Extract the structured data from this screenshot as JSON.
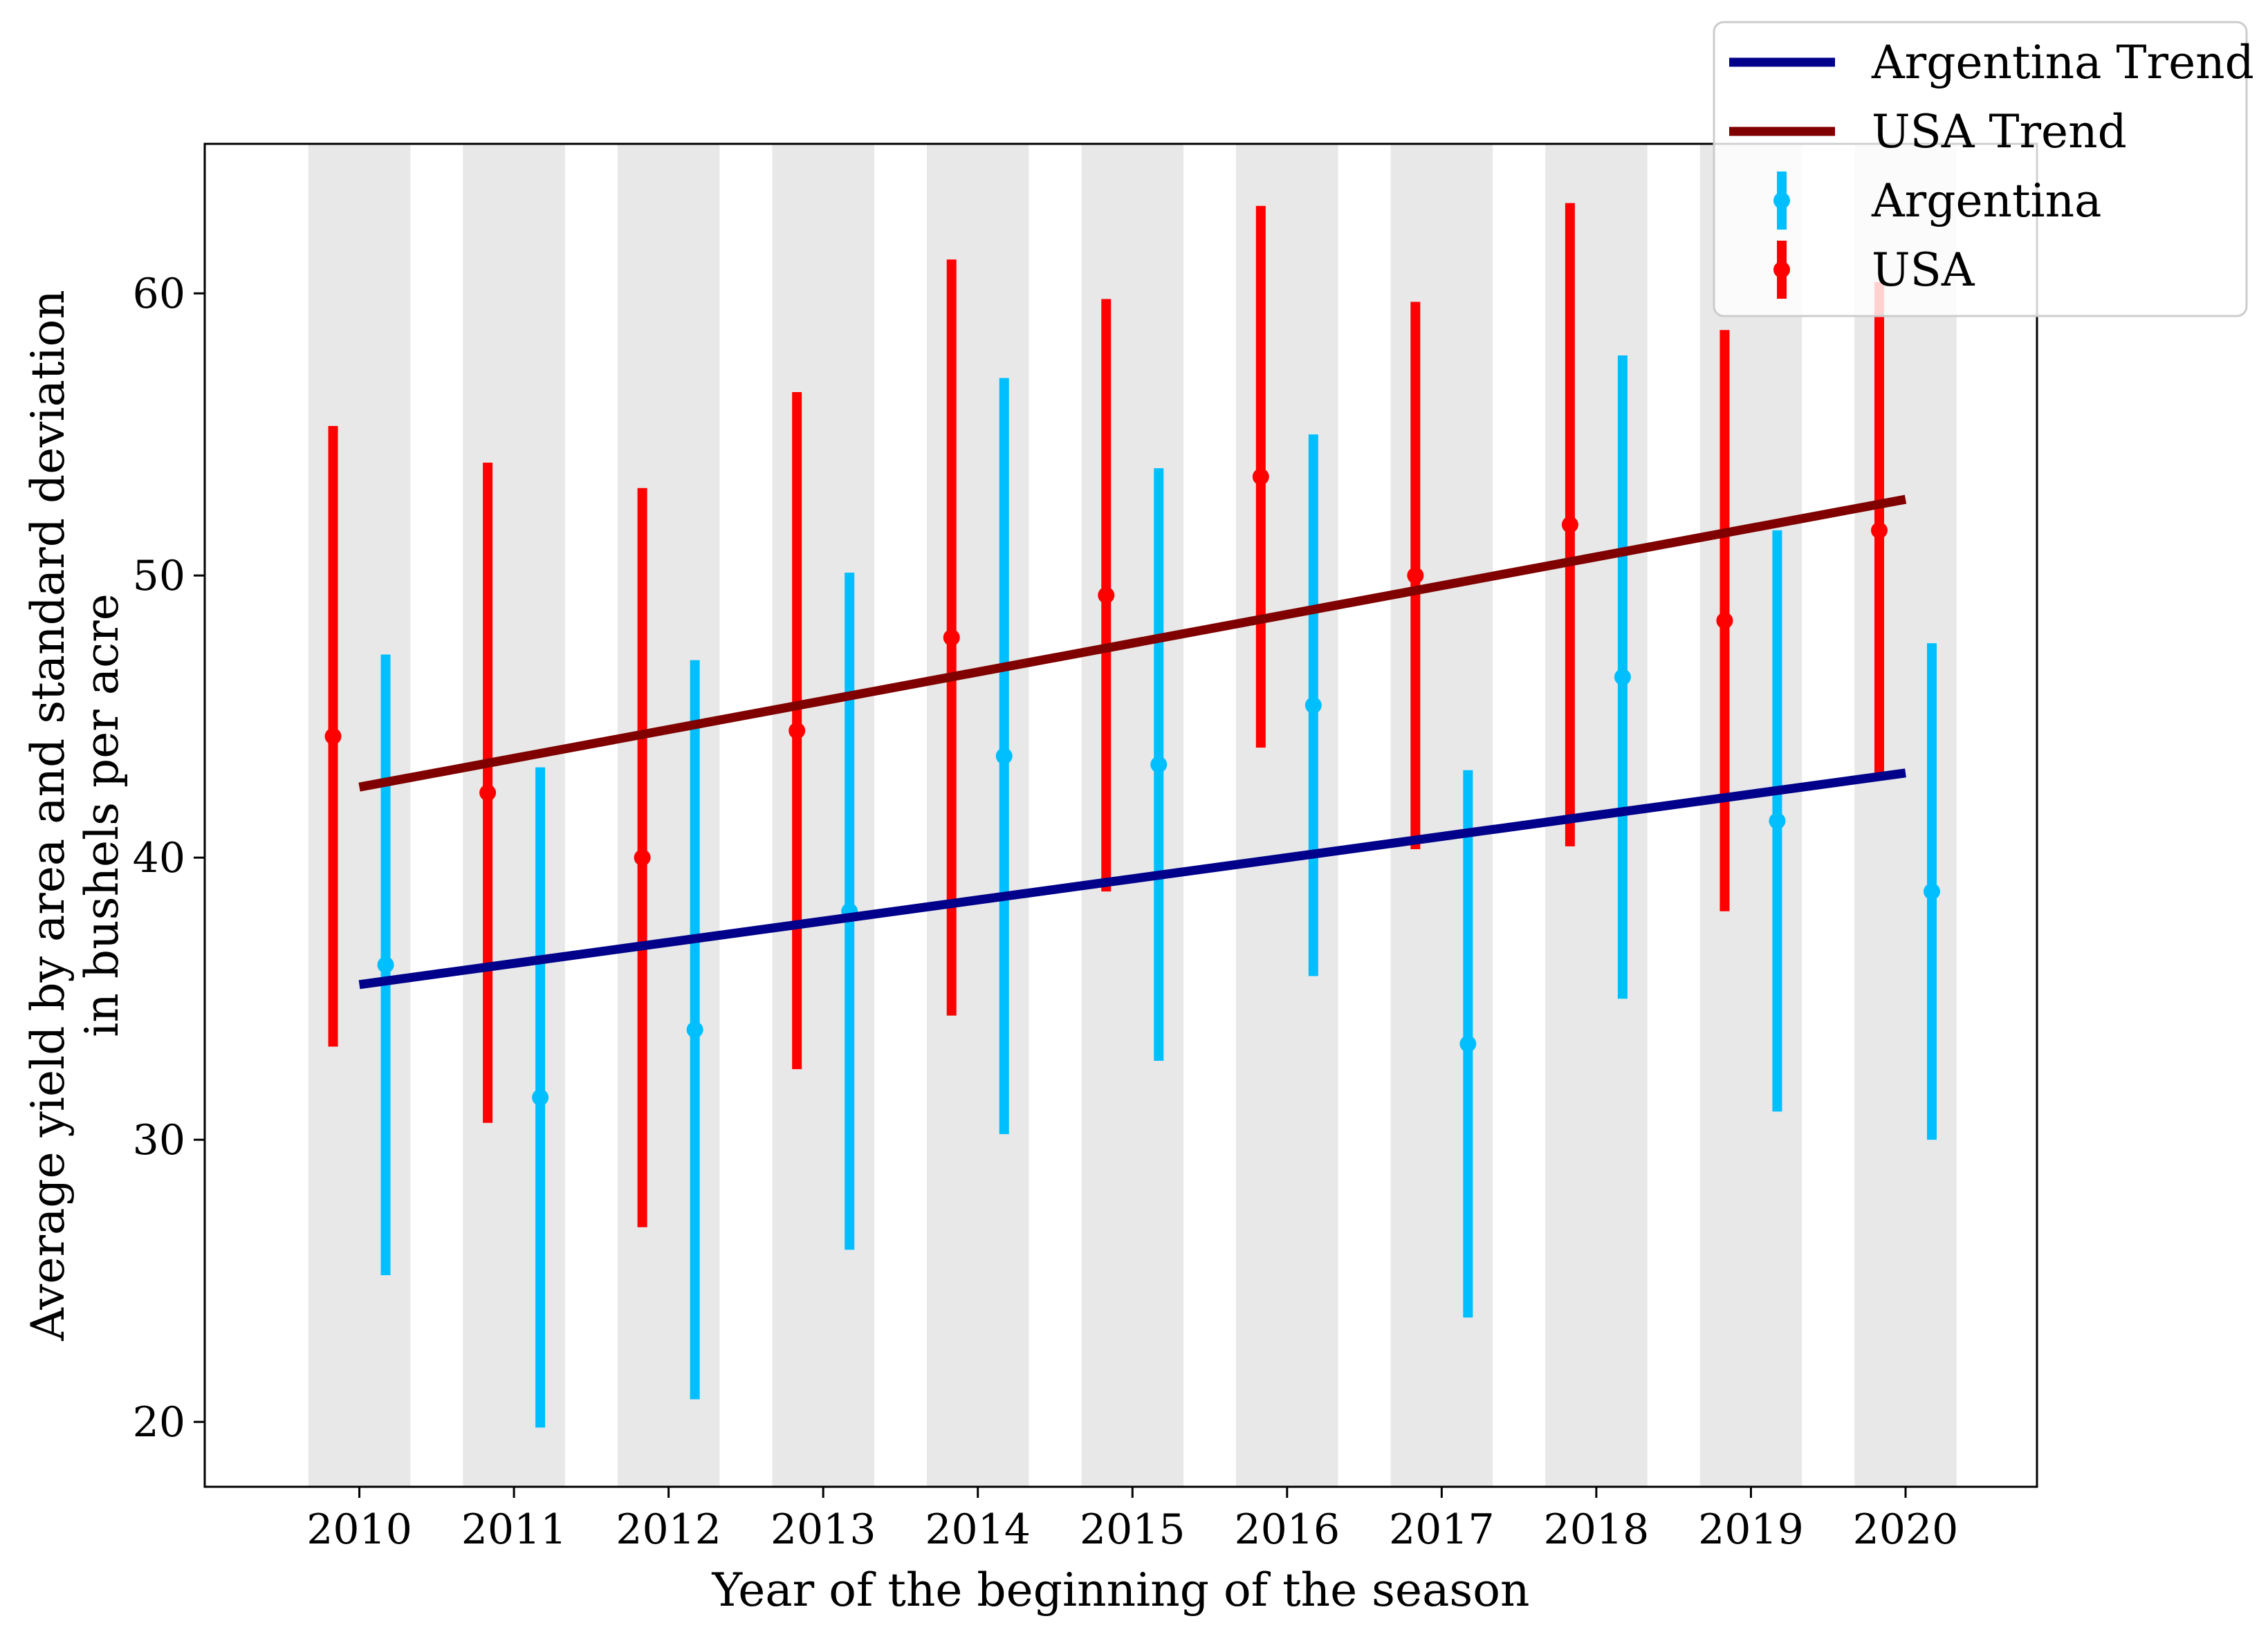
{
  "chart_data": {
    "type": "errorbar-line",
    "title": "",
    "xlabel": "Year of the beginning of the season",
    "ylabel_lines": [
      "Average yield by area and standard deviation",
      "in bushels per acre"
    ],
    "x": [
      2010,
      2011,
      2012,
      2013,
      2014,
      2015,
      2016,
      2017,
      2018,
      2019,
      2020
    ],
    "xlim": [
      2009.0,
      2020.85
    ],
    "ylim": [
      17.7,
      65.3
    ],
    "yticks": [
      20,
      30,
      40,
      50,
      60
    ],
    "xtick_labels": [
      "2010",
      "2011",
      "2012",
      "2013",
      "2014",
      "2015",
      "2016",
      "2017",
      "2018",
      "2019",
      "2020"
    ],
    "ytick_labels": [
      "20",
      "30",
      "40",
      "50",
      "60"
    ],
    "shaded_bands": [
      2010,
      2011,
      2012,
      2013,
      2014,
      2015,
      2016,
      2017,
      2018,
      2019,
      2020
    ],
    "band_halfwidth": 0.33,
    "series": [
      {
        "name": "USA",
        "kind": "errorbar",
        "color": "#ff0000",
        "x_offset": -0.17,
        "mean": [
          44.3,
          42.3,
          40.0,
          44.5,
          47.8,
          49.3,
          53.5,
          50.0,
          51.8,
          48.4,
          51.6
        ],
        "std": [
          11.0,
          11.7,
          13.1,
          12.0,
          13.4,
          10.5,
          9.6,
          9.7,
          11.4,
          10.3,
          8.8
        ]
      },
      {
        "name": "Argentina",
        "kind": "errorbar",
        "color": "#00bfff",
        "x_offset": 0.17,
        "mean": [
          36.2,
          31.5,
          33.9,
          38.1,
          43.6,
          43.3,
          45.4,
          33.4,
          46.4,
          41.3,
          38.8
        ],
        "std": [
          11.0,
          11.7,
          13.1,
          12.0,
          13.4,
          10.5,
          9.6,
          9.7,
          11.4,
          10.3,
          8.8
        ]
      },
      {
        "name": "Argentina Trend",
        "kind": "line",
        "color": "#00008b",
        "x": [
          2010,
          2020
        ],
        "y": [
          35.5,
          43.0
        ]
      },
      {
        "name": "USA Trend",
        "kind": "line",
        "color": "#800000",
        "x": [
          2010,
          2020
        ],
        "y": [
          42.5,
          52.7
        ]
      }
    ],
    "legend": {
      "position": "top-right",
      "entries": [
        {
          "label": "Argentina Trend",
          "style": "line",
          "color": "#00008b"
        },
        {
          "label": "USA Trend",
          "style": "line",
          "color": "#800000"
        },
        {
          "label": "Argentina",
          "style": "errorbar",
          "color": "#00bfff"
        },
        {
          "label": "USA",
          "style": "errorbar",
          "color": "#ff0000"
        }
      ]
    }
  }
}
